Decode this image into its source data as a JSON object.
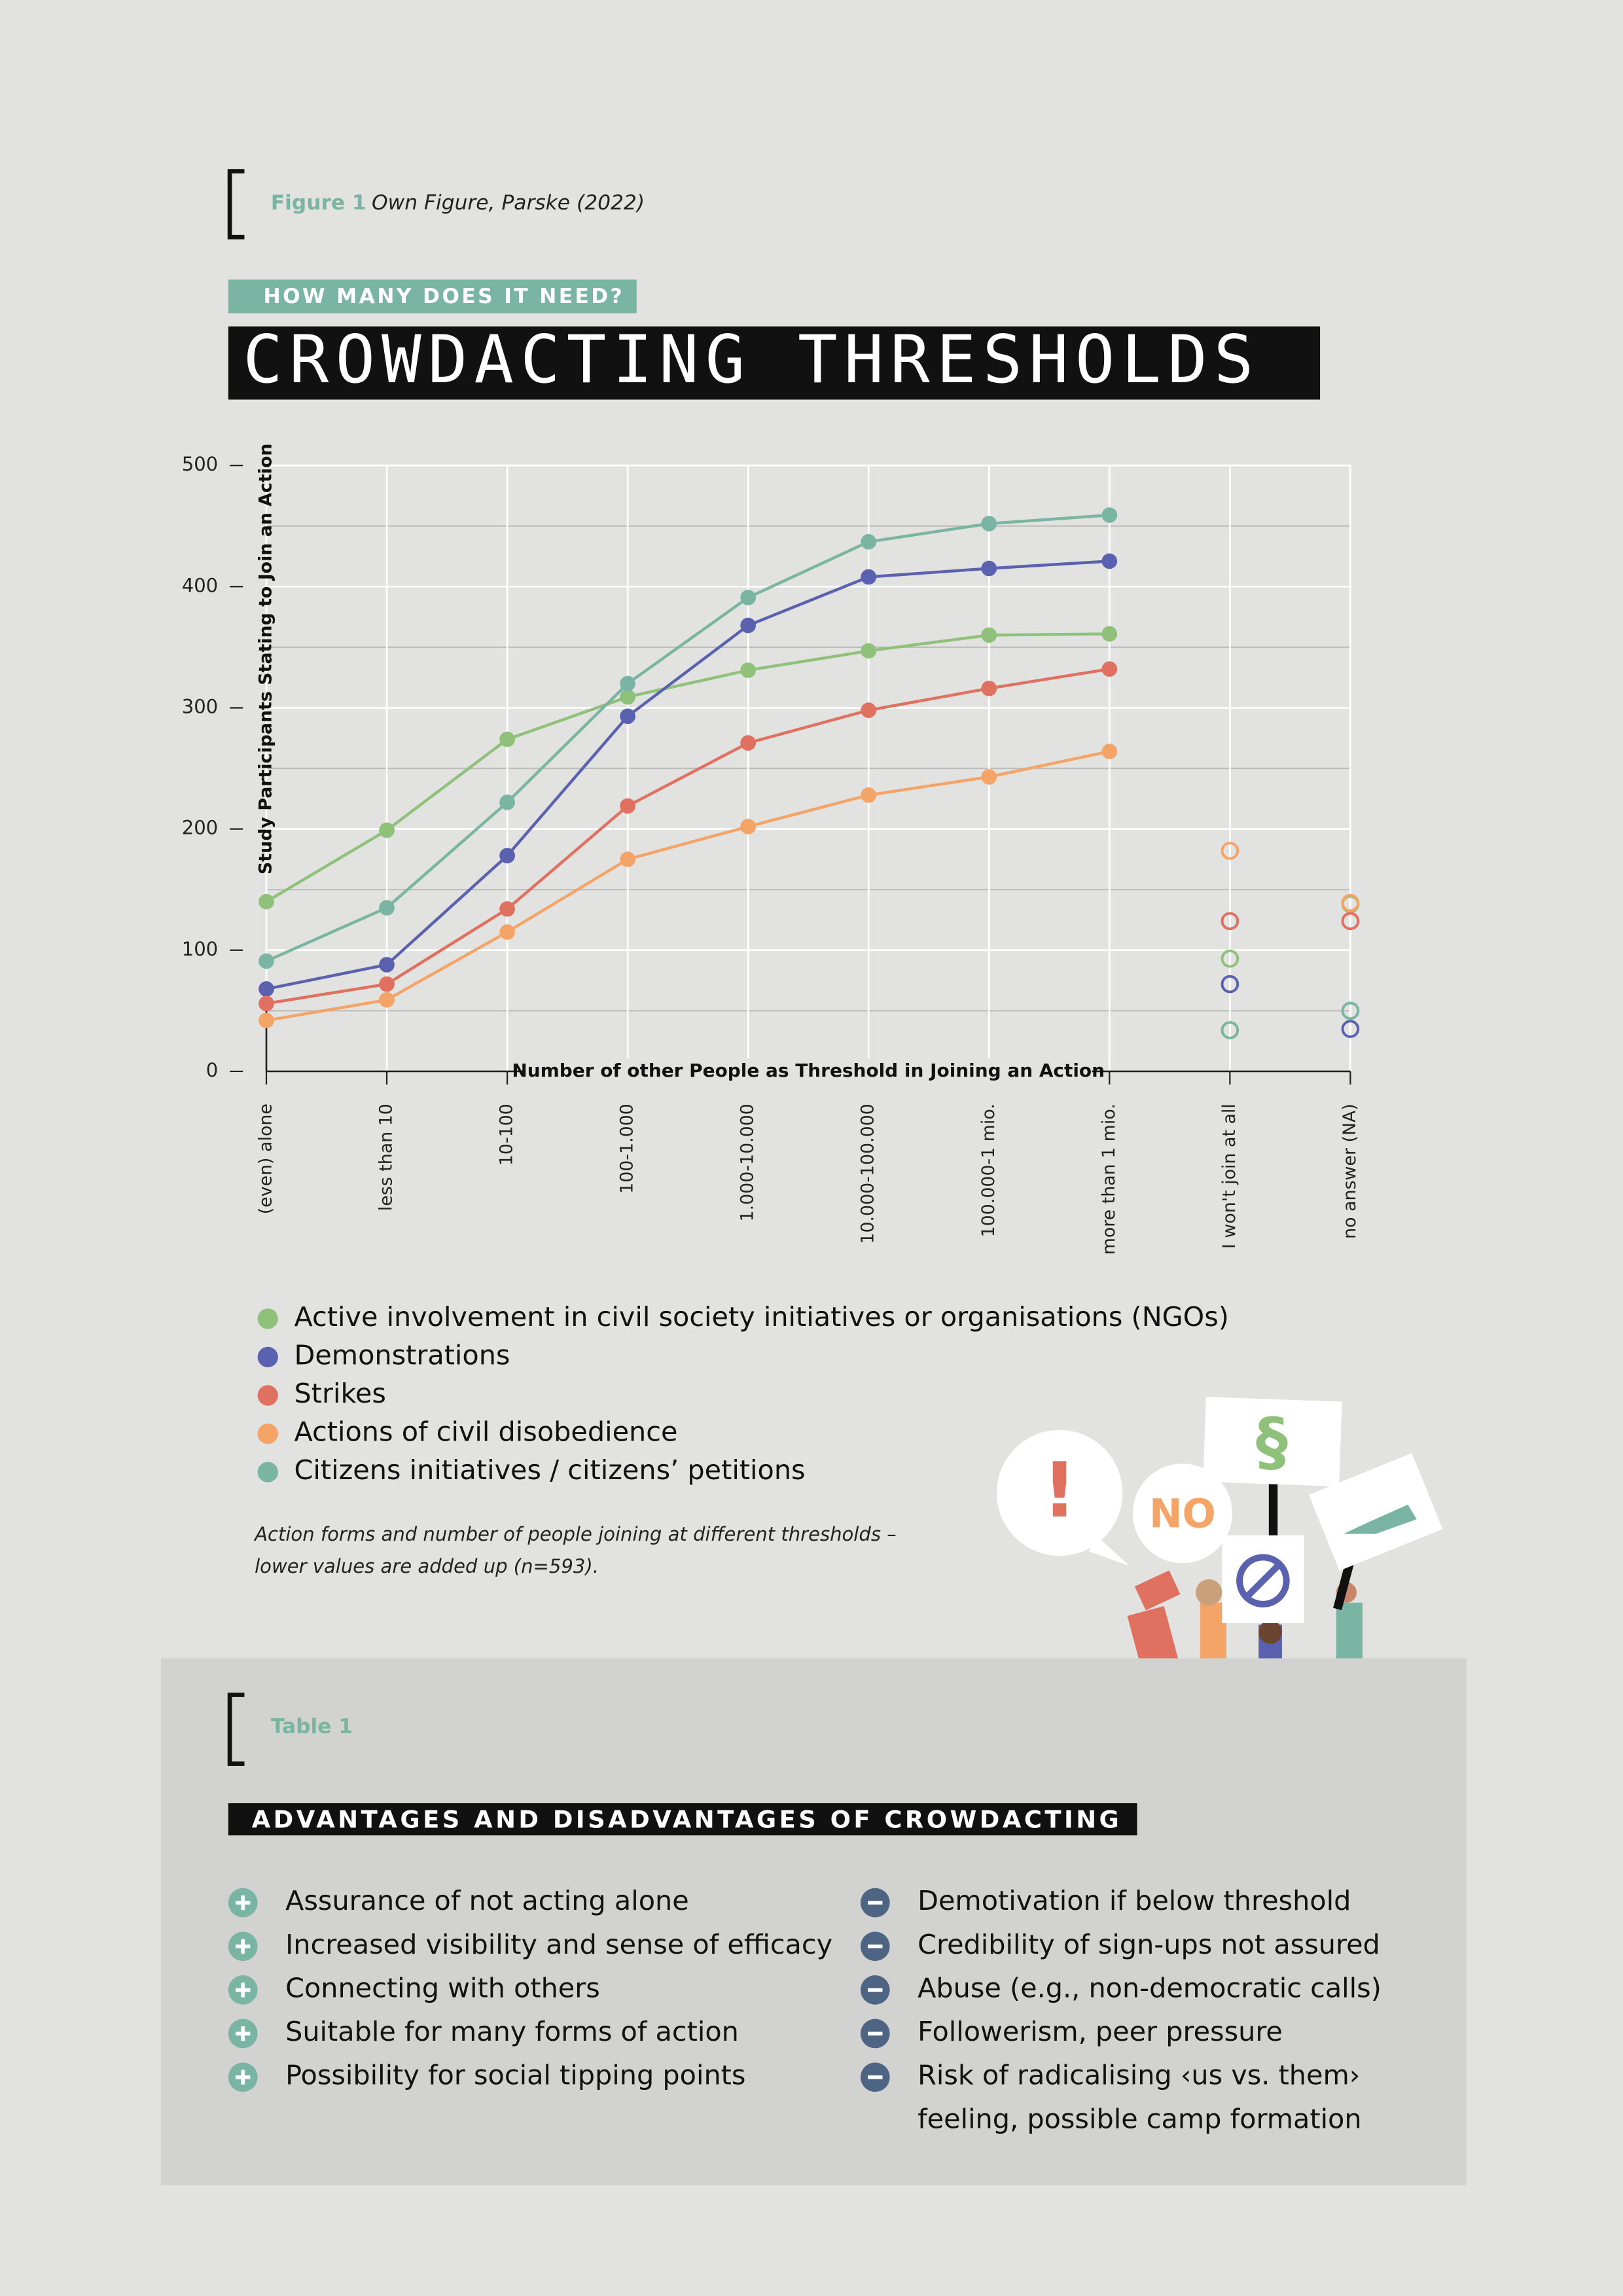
{
  "figure": {
    "label": "Figure 1",
    "source": "Own Figure, Parske (2022)",
    "kicker": "HOW MANY DOES IT NEED?",
    "title": "CROWDACTING THRESHOLDS"
  },
  "chart_data": {
    "type": "line",
    "x_label": "Number of other People as Threshold in Joining an Action",
    "y_label": "Study Participants Stating to Join an Action",
    "categories": [
      "(even) alone",
      "less than 10",
      "10-100",
      "100-1.000",
      "1.000-10.000",
      "10.000-100.000",
      "100.000-1 mio.",
      "more than 1 mio.",
      "I won't join at all",
      "no answer (NA)"
    ],
    "marker_style": [
      "filled",
      "filled",
      "filled",
      "filled",
      "filled",
      "filled",
      "filled",
      "filled",
      "hollow",
      "hollow"
    ],
    "ylim": [
      0,
      500
    ],
    "yticks": [
      0,
      100,
      200,
      300,
      400,
      500
    ],
    "yminor_grid": [
      50,
      150,
      250,
      350,
      450
    ],
    "grid": true,
    "series": [
      {
        "name": "Active involvement in civil society initiatives or organisations (NGOs)",
        "color": "#8fc17a",
        "values": [
          140,
          199,
          274,
          309,
          331,
          347,
          360,
          361,
          93,
          138
        ]
      },
      {
        "name": "Demonstrations",
        "color": "#5a62b0",
        "values": [
          68,
          88,
          178,
          293,
          368,
          408,
          415,
          421,
          72,
          35
        ]
      },
      {
        "name": "Strikes",
        "color": "#e07060",
        "values": [
          56,
          72,
          134,
          219,
          271,
          298,
          316,
          332,
          124,
          124
        ]
      },
      {
        "name": "Actions of civil disobedience",
        "color": "#f4a466",
        "values": [
          42,
          59,
          115,
          175,
          202,
          228,
          243,
          264,
          182,
          139
        ]
      },
      {
        "name": "Citizens initiatives / citizens’ petitions",
        "color": "#79b5a2",
        "values": [
          91,
          135,
          222,
          320,
          391,
          437,
          452,
          459,
          34,
          50
        ]
      }
    ],
    "note": [
      "Action forms and number of people joining at different thresholds –",
      "lower values are added up (n=593)."
    ]
  },
  "illustration": {
    "bubble_1": "!",
    "bubble_2": "NO",
    "sign": "§"
  },
  "table": {
    "label": "Table 1",
    "title": "ADVANTAGES AND DISADVANTAGES OF CROWDACTING",
    "advantages": [
      [
        "Assurance of not acting alone"
      ],
      [
        "Increased visibility and sense of efficacy"
      ],
      [
        "Connecting with others"
      ],
      [
        "Suitable for many forms of action"
      ],
      [
        "Possibility for social tipping points"
      ]
    ],
    "disadvantages": [
      [
        "Demotivation if below threshold"
      ],
      [
        "Credibility of sign-ups not assured"
      ],
      [
        "Abuse (e.g., non-democratic calls)"
      ],
      [
        "Followerism, peer pressure"
      ],
      [
        "Risk of radicalising ‹us vs. them›",
        "feeling, possible camp formation"
      ]
    ]
  }
}
